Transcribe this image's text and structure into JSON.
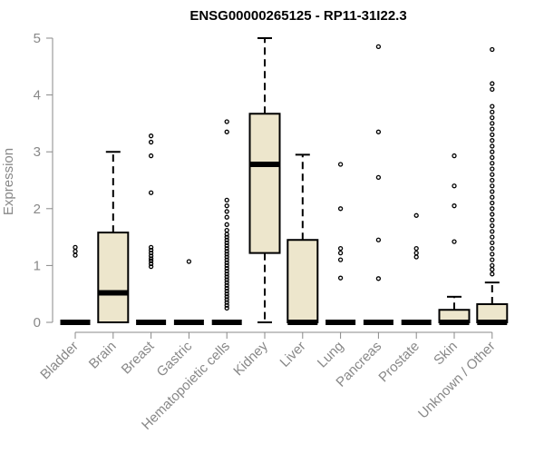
{
  "chart_data": {
    "type": "boxplot",
    "title": "ENSG00000265125 - RP11-31I22.3",
    "xlabel": "",
    "ylabel": "Expression",
    "ylim": [
      0,
      5
    ],
    "yticks": [
      "0",
      "1",
      "2",
      "3",
      "4",
      "5"
    ],
    "colors": {
      "box_fill": "#ede6cc",
      "stroke": "#000000",
      "axis_text": "#888888"
    },
    "categories": [
      "Bladder",
      "Brain",
      "Breast",
      "Gastric",
      "Hematopoietic cells",
      "Kidney",
      "Liver",
      "Lung",
      "Pancreas",
      "Prostate",
      "Skin",
      "Unknown / Other"
    ],
    "boxes": [
      {
        "q1": 0,
        "median": 0,
        "q3": 0,
        "whisker_low": 0,
        "whisker_high": 0,
        "outliers": [
          1.18,
          1.25,
          1.32
        ]
      },
      {
        "q1": 0,
        "median": 0.52,
        "q3": 1.58,
        "whisker_low": 0,
        "whisker_high": 3.0,
        "outliers": []
      },
      {
        "q1": 0,
        "median": 0,
        "q3": 0,
        "whisker_low": 0,
        "whisker_high": 0,
        "outliers": [
          0.98,
          1.03,
          1.08,
          1.12,
          1.17,
          1.22,
          1.27,
          1.32,
          2.28,
          2.93,
          3.17,
          3.28
        ]
      },
      {
        "q1": 0,
        "median": 0,
        "q3": 0,
        "whisker_low": 0,
        "whisker_high": 0,
        "outliers": [
          1.07
        ]
      },
      {
        "q1": 0,
        "median": 0,
        "q3": 0,
        "whisker_low": 0,
        "whisker_high": 0,
        "outliers": [
          0.25,
          0.3,
          0.35,
          0.4,
          0.45,
          0.5,
          0.55,
          0.6,
          0.65,
          0.7,
          0.75,
          0.8,
          0.85,
          0.9,
          0.95,
          1.0,
          1.05,
          1.1,
          1.15,
          1.2,
          1.25,
          1.3,
          1.35,
          1.4,
          1.45,
          1.5,
          1.55,
          1.62,
          1.72,
          1.85,
          1.95,
          2.05,
          2.15,
          3.35,
          3.53
        ]
      },
      {
        "q1": 1.22,
        "median": 2.78,
        "q3": 3.67,
        "whisker_low": 0,
        "whisker_high": 5.0,
        "outliers": []
      },
      {
        "q1": 0,
        "median": 0,
        "q3": 1.45,
        "whisker_low": 0,
        "whisker_high": 2.95,
        "outliers": []
      },
      {
        "q1": 0,
        "median": 0,
        "q3": 0,
        "whisker_low": 0,
        "whisker_high": 0,
        "outliers": [
          0.78,
          1.1,
          1.22,
          1.3,
          2.0,
          2.78
        ]
      },
      {
        "q1": 0,
        "median": 0,
        "q3": 0,
        "whisker_low": 0,
        "whisker_high": 0,
        "outliers": [
          0.77,
          1.45,
          2.55,
          3.35,
          4.85
        ]
      },
      {
        "q1": 0,
        "median": 0,
        "q3": 0,
        "whisker_low": 0,
        "whisker_high": 0,
        "outliers": [
          1.15,
          1.22,
          1.3,
          1.88
        ]
      },
      {
        "q1": 0,
        "median": 0,
        "q3": 0.22,
        "whisker_low": 0,
        "whisker_high": 0.45,
        "outliers": [
          1.42,
          2.05,
          2.4,
          2.93
        ]
      },
      {
        "q1": 0,
        "median": 0,
        "q3": 0.32,
        "whisker_low": 0,
        "whisker_high": 0.7,
        "outliers": [
          0.85,
          0.93,
          1.0,
          1.1,
          1.2,
          1.3,
          1.4,
          1.5,
          1.6,
          1.7,
          1.8,
          1.9,
          2.0,
          2.1,
          2.2,
          2.3,
          2.4,
          2.5,
          2.6,
          2.7,
          2.8,
          2.9,
          3.0,
          3.1,
          3.2,
          3.3,
          3.4,
          3.5,
          3.6,
          3.7,
          3.8,
          4.1,
          4.2,
          4.8
        ]
      }
    ]
  }
}
